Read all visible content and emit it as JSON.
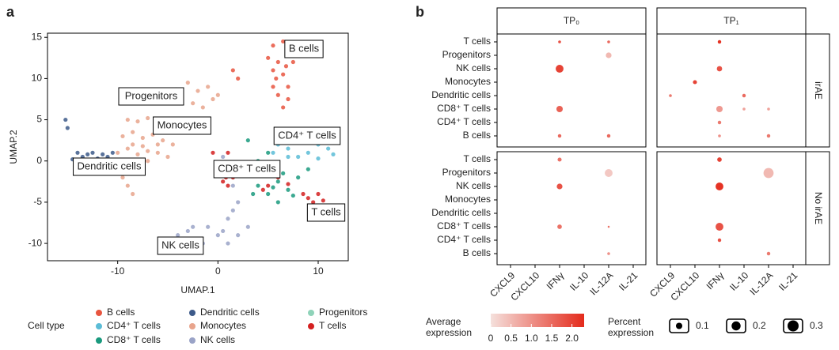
{
  "chart_data": [
    {
      "type": "scatter",
      "panel_label": "a",
      "xlabel": "UMAP.1",
      "ylabel": "UMAP.2",
      "xlim": [
        -17,
        13
      ],
      "ylim": [
        -12.1,
        15.5
      ],
      "xticks": [
        -10,
        0,
        10
      ],
      "yticks": [
        -10,
        -5,
        0,
        5,
        10,
        15
      ],
      "legend_title": "Cell type",
      "series": [
        {
          "name": "B cells",
          "color": "#e8553f",
          "x": [
            5.5,
            6.5,
            7,
            5,
            6,
            7.5,
            5.5,
            6.5,
            7,
            5.5,
            6,
            7,
            2,
            1.5,
            6.5,
            6.8,
            5.8
          ],
          "y": [
            14,
            14.5,
            13.5,
            12.5,
            12,
            12,
            11,
            10.5,
            9,
            9,
            8,
            7.5,
            10,
            11,
            6.5,
            11.5,
            10
          ]
        },
        {
          "name": "Dendritic cells",
          "color": "#3d5a8a",
          "x": [
            -14,
            -13,
            -12.5,
            -13.5,
            -11.5,
            -11,
            -10.5,
            -12,
            -15,
            -15.2,
            -14.5
          ],
          "y": [
            1,
            0.8,
            1,
            0.5,
            0.8,
            0.5,
            1,
            0.3,
            4,
            5,
            0.2
          ]
        },
        {
          "name": "Progenitors",
          "color": "#8fd3b9",
          "x": [
            -4.5,
            -4.2
          ],
          "y": [
            8.5,
            8.7
          ]
        },
        {
          "name": "CD4⁺ T cells",
          "color": "#5bbcd6",
          "x": [
            6,
            7,
            8,
            9,
            10,
            11,
            12,
            8,
            10,
            11.5,
            7,
            9.5,
            5.5,
            10.8
          ],
          "y": [
            2,
            1.5,
            2.5,
            1,
            2,
            1.5,
            2.5,
            0.5,
            0.3,
            0.8,
            0.5,
            2.8,
            1,
            3
          ]
        },
        {
          "name": "Monocytes",
          "color": "#e8a48c",
          "x": [
            -10,
            -9,
            -8,
            -7,
            -6,
            -5,
            -9.5,
            -8.5,
            -7.5,
            -6.5,
            -5.5,
            -4.5,
            -9,
            -8,
            -7,
            -6,
            -8.5,
            -7.5,
            -3,
            -2,
            -1,
            0,
            -2.5,
            -1.5,
            -0.5,
            -9,
            -8.5,
            -9.5,
            -4,
            -6,
            -7,
            -5
          ],
          "y": [
            1,
            1.5,
            0.8,
            1.2,
            1,
            0.5,
            3,
            3.5,
            2.8,
            3.2,
            2.5,
            2,
            5,
            4.8,
            5.2,
            4.5,
            2,
            1.8,
            9.5,
            8.5,
            9,
            8,
            7,
            6.5,
            7.5,
            -3,
            -4,
            -2,
            4,
            2,
            0,
            3.5
          ]
        },
        {
          "name": "T cells",
          "color": "#d42020",
          "x": [
            0.5,
            1,
            1.5,
            9,
            10,
            9.5,
            10.5,
            8.5,
            5,
            6,
            -0.5,
            1,
            3,
            4.5,
            7,
            0.8
          ],
          "y": [
            -2.5,
            -3,
            -2,
            -4.5,
            -4,
            -5,
            -4.8,
            -4,
            -3,
            -2,
            1,
            1,
            -1,
            -3.5,
            -2.8,
            -2
          ]
        },
        {
          "name": "CD8⁺ T cells",
          "color": "#1a9a7e",
          "x": [
            4,
            5,
            6,
            7,
            8,
            4.5,
            3.5,
            6,
            9,
            5,
            3,
            4,
            5.5,
            7.5,
            6.5
          ],
          "y": [
            -3,
            -4,
            -2.5,
            -3.5,
            -2,
            -1,
            -4,
            -5,
            -1,
            1,
            2.5,
            0,
            -3.2,
            -4.2,
            -1.5
          ]
        },
        {
          "name": "NK cells",
          "color": "#9aa3c7",
          "x": [
            -4,
            -3,
            -2,
            -1,
            0,
            1,
            2,
            1,
            2,
            1.5,
            2,
            0.5,
            -3,
            3,
            -1.5,
            0.5,
            -2.5,
            1.5
          ],
          "y": [
            -9,
            -8.5,
            -9.5,
            -8,
            -9,
            -10,
            -9,
            -7,
            -5,
            -3,
            -1,
            0.5,
            -10,
            -8,
            -10,
            -8.5,
            -8,
            -6
          ]
        }
      ]
    },
    {
      "type": "dotplot",
      "panel_label": "b",
      "col_facets": [
        "TP₀",
        "TP₁"
      ],
      "row_facets": [
        "irAE",
        "No irAE"
      ],
      "genes": [
        "CXCL9",
        "CXCL10",
        "IFNγ",
        "IL-10",
        "IL-12A",
        "IL-21"
      ],
      "cell_types": [
        "T cells",
        "Progenitors",
        "NK cells",
        "Monocytes",
        "Dendritic cells",
        "CD8⁺ T cells",
        "CD4⁺ T cells",
        "B cells"
      ],
      "color_title": "Average\nexpression",
      "color_lim": [
        0,
        2.3
      ],
      "color_range": [
        "#f5e0dc",
        "#e42b1c"
      ],
      "color_ticks": [
        0,
        0.5,
        {
          "value": 1,
          "label": "1.0"
        },
        1.5,
        {
          "value": 2,
          "label": "2.0"
        }
      ],
      "size_title": "Percent\nexpression",
      "size_ticks": [
        0.1,
        0.2,
        0.3
      ],
      "panels": [
        {
          "row": 0,
          "col": 0,
          "dots": [
            {
              "cell": 0,
              "gene": 2,
              "pct": 0.02,
              "avg": 1.8
            },
            {
              "cell": 0,
              "gene": 4,
              "pct": 0.02,
              "avg": 1.5
            },
            {
              "cell": 1,
              "gene": 4,
              "pct": 0.08,
              "avg": 0.5
            },
            {
              "cell": 2,
              "gene": 2,
              "pct": 0.15,
              "avg": 2.0
            },
            {
              "cell": 5,
              "gene": 2,
              "pct": 0.1,
              "avg": 1.6
            },
            {
              "cell": 7,
              "gene": 2,
              "pct": 0.03,
              "avg": 1.5
            },
            {
              "cell": 7,
              "gene": 4,
              "pct": 0.03,
              "avg": 1.5
            }
          ]
        },
        {
          "row": 0,
          "col": 1,
          "dots": [
            {
              "cell": 0,
              "gene": 2,
              "pct": 0.03,
              "avg": 2.2
            },
            {
              "cell": 2,
              "gene": 2,
              "pct": 0.07,
              "avg": 1.8
            },
            {
              "cell": 3,
              "gene": 1,
              "pct": 0.04,
              "avg": 2.0
            },
            {
              "cell": 4,
              "gene": 0,
              "pct": 0.02,
              "avg": 1.3
            },
            {
              "cell": 4,
              "gene": 3,
              "pct": 0.03,
              "avg": 1.5
            },
            {
              "cell": 5,
              "gene": 2,
              "pct": 0.1,
              "avg": 0.9
            },
            {
              "cell": 5,
              "gene": 3,
              "pct": 0.02,
              "avg": 0.8
            },
            {
              "cell": 5,
              "gene": 4,
              "pct": 0.02,
              "avg": 0.8
            },
            {
              "cell": 6,
              "gene": 2,
              "pct": 0.03,
              "avg": 1.3
            },
            {
              "cell": 7,
              "gene": 2,
              "pct": 0.02,
              "avg": 1.0
            },
            {
              "cell": 7,
              "gene": 4,
              "pct": 0.03,
              "avg": 1.3
            }
          ]
        },
        {
          "row": 1,
          "col": 0,
          "dots": [
            {
              "cell": 0,
              "gene": 2,
              "pct": 0.04,
              "avg": 1.4
            },
            {
              "cell": 1,
              "gene": 4,
              "pct": 0.15,
              "avg": 0.3
            },
            {
              "cell": 2,
              "gene": 2,
              "pct": 0.08,
              "avg": 1.8
            },
            {
              "cell": 5,
              "gene": 2,
              "pct": 0.05,
              "avg": 1.4
            },
            {
              "cell": 5,
              "gene": 4,
              "pct": 0.01,
              "avg": 1.4
            },
            {
              "cell": 7,
              "gene": 4,
              "pct": 0.02,
              "avg": 1.0
            }
          ]
        },
        {
          "row": 1,
          "col": 1,
          "dots": [
            {
              "cell": 0,
              "gene": 2,
              "pct": 0.05,
              "avg": 2.0
            },
            {
              "cell": 1,
              "gene": 4,
              "pct": 0.25,
              "avg": 0.5
            },
            {
              "cell": 2,
              "gene": 2,
              "pct": 0.15,
              "avg": 2.2
            },
            {
              "cell": 5,
              "gene": 2,
              "pct": 0.15,
              "avg": 1.8
            },
            {
              "cell": 6,
              "gene": 2,
              "pct": 0.03,
              "avg": 1.8
            },
            {
              "cell": 7,
              "gene": 4,
              "pct": 0.03,
              "avg": 1.3
            }
          ]
        }
      ]
    }
  ]
}
